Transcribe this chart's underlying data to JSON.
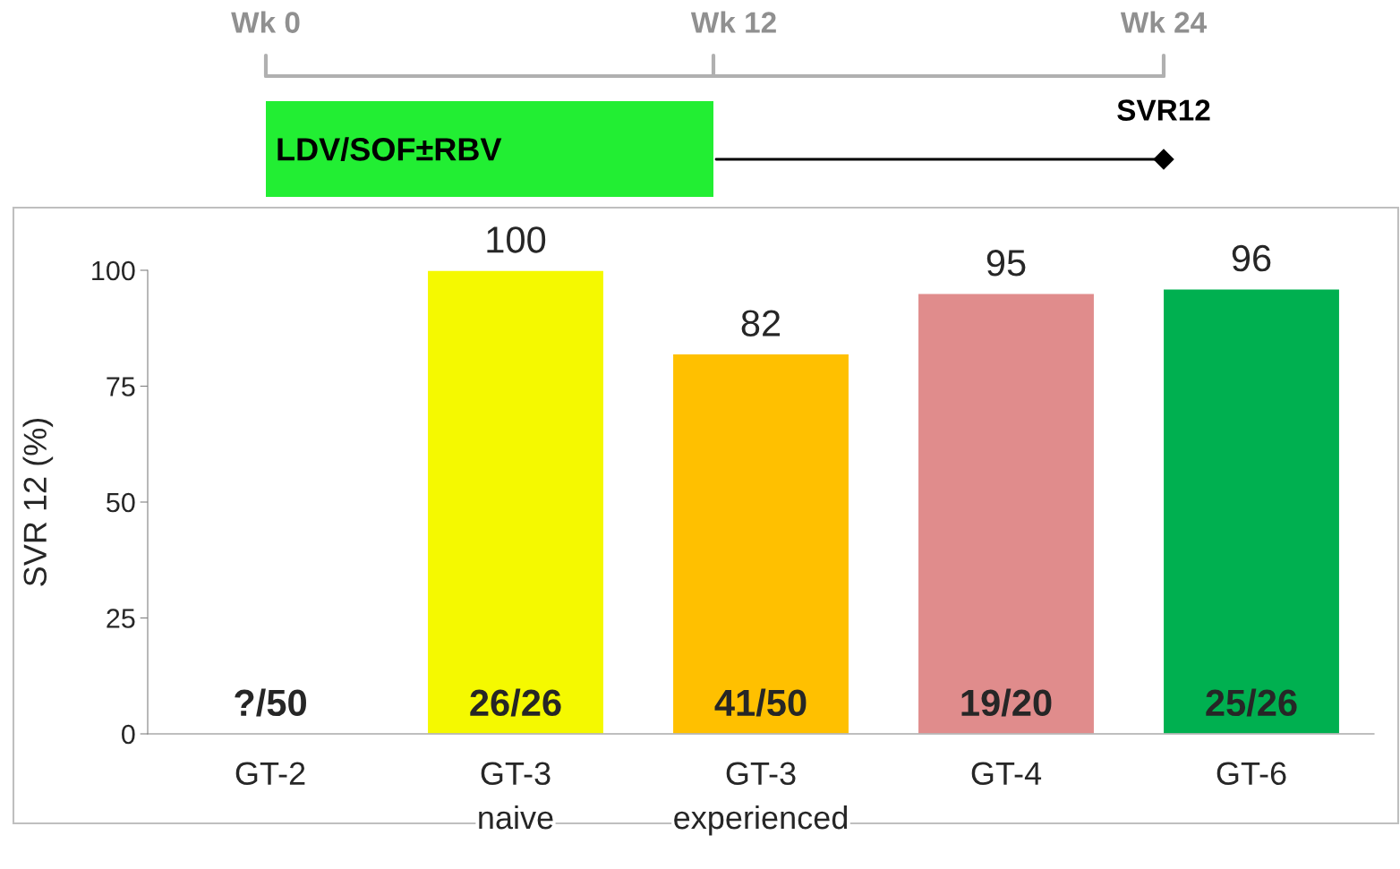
{
  "chart_data": {
    "type": "bar",
    "ylabel": "SVR 12 (%)",
    "categories": [
      "GT-2",
      "GT-3\nnaive",
      "GT-3\nexperienced",
      "GT-4",
      "GT-6"
    ],
    "values": [
      null,
      100,
      82,
      95,
      96
    ],
    "colors": [
      "#bfbfbf",
      "#f5f900",
      "#ffc000",
      "#e08c8c",
      "#00b050"
    ],
    "ylim": [
      0,
      100
    ],
    "yticks": [
      0,
      25,
      50,
      75,
      100
    ],
    "data_labels": true,
    "grid": false,
    "legend": false,
    "annotations": [
      "Wk 0",
      "Wk 12",
      "Wk 24",
      "LDV/SOF±RBV",
      "SVR12",
      "?/50",
      "26/26",
      "41/50",
      "19/20",
      "25/26"
    ]
  }
}
